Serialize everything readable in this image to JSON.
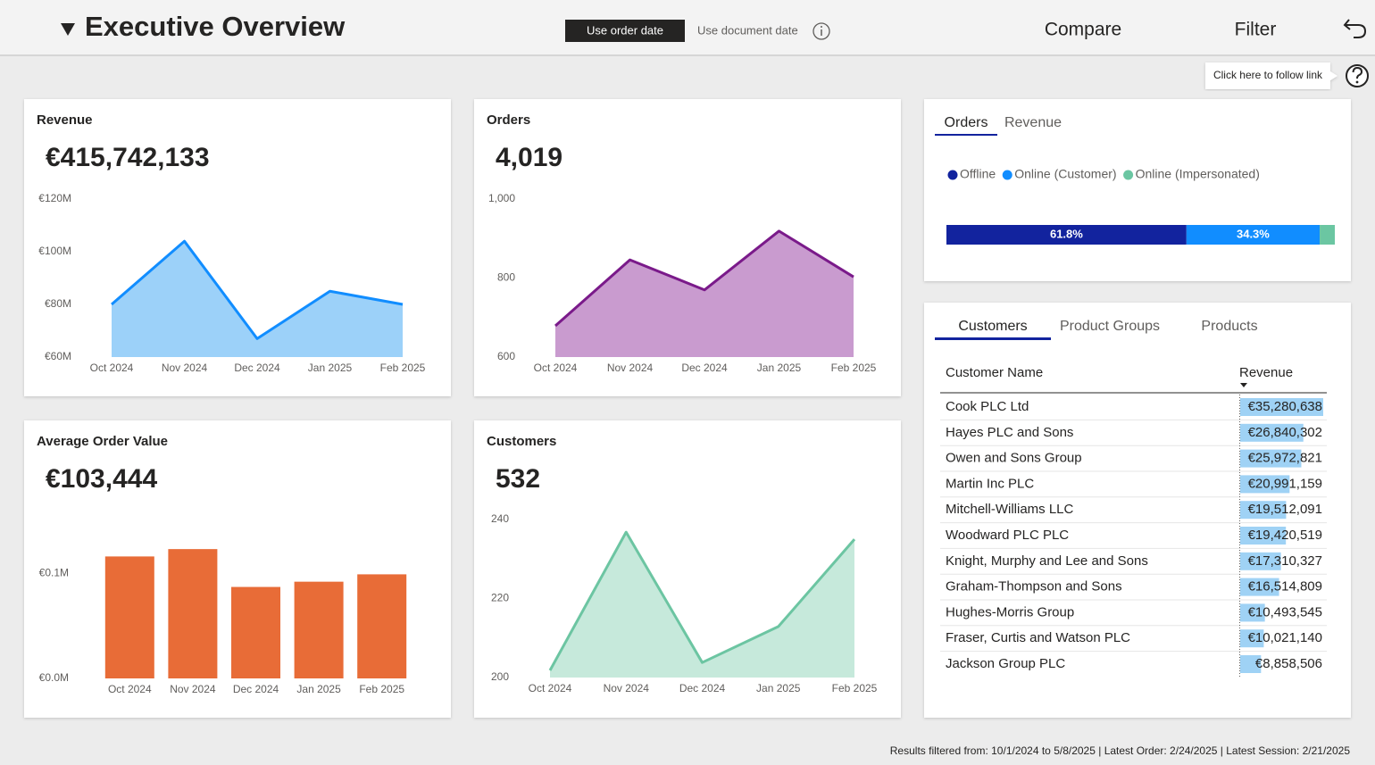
{
  "header": {
    "title": "Executive Overview",
    "date_buttons": [
      "Use order date",
      "Use document date"
    ],
    "actions": [
      "Compare",
      "Filter"
    ],
    "tooltip": "Click here to follow link"
  },
  "panels": {
    "channel_tabs": [
      "Orders",
      "Revenue"
    ],
    "table_tabs": [
      "Customers",
      "Product Groups",
      "Products"
    ]
  },
  "chart_data": [
    {
      "type": "area",
      "title": "Revenue",
      "kpi": "€415,742,133",
      "categories": [
        "Oct 2024",
        "Nov 2024",
        "Dec 2024",
        "Jan 2025",
        "Feb 2025"
      ],
      "values": [
        80,
        104,
        67,
        85,
        80
      ],
      "color": "#118dff",
      "fill_color": "#9cd1f9",
      "ylim": [
        60,
        120
      ],
      "yticks": [
        {
          "value": 60,
          "label": "€60M"
        },
        {
          "value": 80,
          "label": "€80M"
        },
        {
          "value": 100,
          "label": "€100M"
        },
        {
          "value": 120,
          "label": "€120M"
        }
      ]
    },
    {
      "type": "area",
      "title": "Orders",
      "kpi": "4,019",
      "categories": [
        "Oct 2024",
        "Nov 2024",
        "Dec 2024",
        "Jan 2025",
        "Feb 2025"
      ],
      "values": [
        679,
        846,
        770,
        919,
        803
      ],
      "color": "#7a1a8a",
      "fill_color": "#c99bcf",
      "ylim": [
        600,
        1000
      ],
      "yticks": [
        600,
        800,
        {
          "value": 1000,
          "label": "1,000"
        }
      ]
    },
    {
      "type": "bar",
      "title": "Average Order Value",
      "kpi": "€103,444",
      "categories": [
        "Oct 2024",
        "Nov 2024",
        "Dec 2024",
        "Jan 2025",
        "Feb 2025"
      ],
      "values": [
        0.116,
        0.123,
        0.087,
        0.092,
        0.099
      ],
      "color": "#e86c37",
      "ylim": [
        0,
        0.135
      ],
      "yticks": [
        {
          "value": 0,
          "label": "€0.0M"
        },
        {
          "value": 0.1,
          "label": "€0.1M"
        }
      ]
    },
    {
      "type": "area",
      "title": "Customers",
      "kpi": "532",
      "categories": [
        "Oct 2024",
        "Nov 2024",
        "Dec 2024",
        "Jan 2025",
        "Feb 2025"
      ],
      "values": [
        201.8,
        236.8,
        203.8,
        212.9,
        235
      ],
      "color": "#6cc5a2",
      "fill_color": "#c6e9db",
      "ylim": [
        200,
        240
      ],
      "yticks": [
        200,
        220,
        240
      ]
    },
    {
      "type": "stacked_bar",
      "series": [
        {
          "name": "Offline",
          "color": "#12239e",
          "values": [
            61.8
          ],
          "value_labels": [
            "61.8%"
          ]
        },
        {
          "name": "Online (Customer)",
          "color": "#118dff",
          "values": [
            34.3
          ],
          "value_labels": [
            "34.3%"
          ]
        },
        {
          "name": "Online (Impersonated)",
          "color": "#6bc6a2",
          "values": [
            3.9
          ],
          "value_labels": [
            null
          ]
        }
      ],
      "xlim": [
        0,
        100
      ]
    }
  ],
  "table": {
    "columns": [
      "Customer Name",
      "Revenue"
    ],
    "bar_color": "#9fd2f5",
    "rows": [
      {
        "name": "Cook PLC Ltd",
        "revenue": 35280638,
        "revenue_label": "€35,280,638"
      },
      {
        "name": "Hayes PLC and Sons",
        "revenue": 26840302,
        "revenue_label": "€26,840,302"
      },
      {
        "name": "Owen and Sons Group",
        "revenue": 25972821,
        "revenue_label": "€25,972,821"
      },
      {
        "name": "Martin Inc PLC",
        "revenue": 20991159,
        "revenue_label": "€20,991,159"
      },
      {
        "name": "Mitchell-Williams LLC",
        "revenue": 19512091,
        "revenue_label": "€19,512,091"
      },
      {
        "name": "Woodward PLC PLC",
        "revenue": 19420519,
        "revenue_label": "€19,420,519"
      },
      {
        "name": "Knight, Murphy and Lee and Sons",
        "revenue": 17310327,
        "revenue_label": "€17,310,327"
      },
      {
        "name": "Graham-Thompson and Sons",
        "revenue": 16514809,
        "revenue_label": "€16,514,809"
      },
      {
        "name": "Hughes-Morris Group",
        "revenue": 10493545,
        "revenue_label": "€10,493,545"
      },
      {
        "name": "Fraser, Curtis and Watson PLC",
        "revenue": 10021140,
        "revenue_label": "€10,021,140"
      },
      {
        "name": "Jackson Group PLC",
        "revenue": 8858506,
        "revenue_label": "€8,858,506"
      }
    ]
  },
  "footer": "Results filtered from: 10/1/2024 to 5/8/2025  |  Latest Order: 2/24/2025  |  Latest Session: 2/21/2025"
}
